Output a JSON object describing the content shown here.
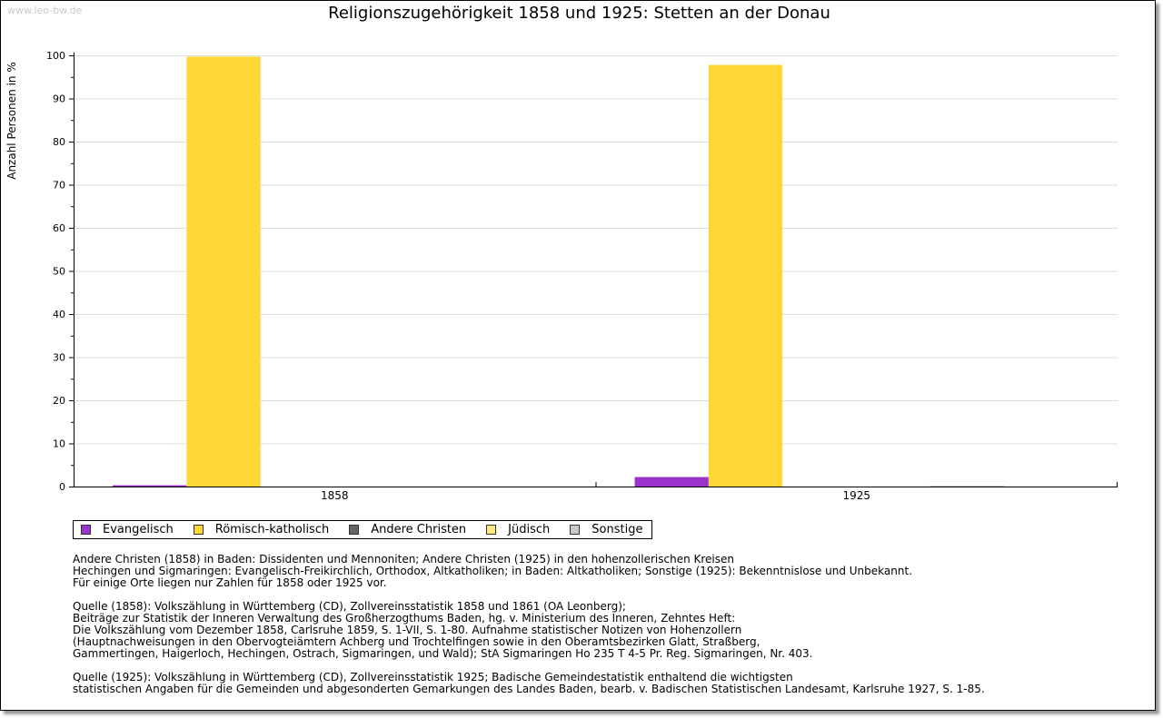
{
  "watermark": "www.leo-bw.de",
  "chart_data": {
    "type": "bar",
    "title": "Religionszugehörigkeit 1858 und 1925: Stetten an der Donau",
    "ylabel": "Anzahl Personen in %",
    "xlabel": "",
    "ylim": [
      0,
      100
    ],
    "yticks": [
      0,
      10,
      20,
      30,
      40,
      50,
      60,
      70,
      80,
      90,
      100
    ],
    "grid": true,
    "categories": [
      "1858",
      "1925"
    ],
    "series": [
      {
        "name": "Evangelisch",
        "color": "#9933cc",
        "values": [
          0.3,
          2.2
        ]
      },
      {
        "name": "Römisch-katholisch",
        "color": "#fdd835",
        "values": [
          99.7,
          97.8
        ]
      },
      {
        "name": "Andere Christen",
        "color": "#666666",
        "values": [
          0,
          0
        ]
      },
      {
        "name": "Jüdisch",
        "color": "#ffe680",
        "values": [
          0,
          0
        ]
      },
      {
        "name": "Sonstige",
        "color": "#c8c8c8",
        "values": [
          0,
          0.1
        ]
      }
    ],
    "legend": "bottom-left"
  },
  "notes": [
    "Andere Christen (1858) in Baden: Dissidenten und Mennoniten; Andere Christen (1925) in den hohenzollerischen Kreisen\nHechingen und Sigmaringen: Evangelisch-Freikirchlich, Orthodox, Altkatholiken; in Baden: Altkatholiken; Sonstige (1925): Bekenntnislose und Unbekannt.\nFür einige Orte liegen nur Zahlen für 1858 oder 1925 vor.",
    "Quelle (1858): Volkszählung in Württemberg (CD), Zollvereinsstatistik 1858 und 1861 (OA Leonberg);\nBeiträge zur Statistik der Inneren Verwaltung des Großherzogthums Baden, hg. v. Ministerium des Inneren, Zehntes Heft:\nDie Volkszählung vom Dezember 1858, Carlsruhe 1859, S. 1-VII, S. 1-80. Aufnahme statistischer Notizen von Hohenzollern\n(Hauptnachweisungen in den Obervogteiämtern Achberg und Trochtelfingen sowie in den Oberamtsbezirken Glatt, Straßberg,\nGammertingen, Haigerloch, Hechingen, Ostrach, Sigmaringen, und Wald); StA Sigmaringen Ho 235 T 4-5 Pr. Reg. Sigmaringen, Nr. 403.",
    "Quelle (1925): Volkszählung in Württemberg (CD), Zollvereinsstatistik 1925; Badische Gemeindestatistik enthaltend die wichtigsten\nstatistischen Angaben für die Gemeinden und abgesonderten Gemarkungen des Landes Baden, bearb. v. Badischen Statistischen Landesamt, Karlsruhe 1927, S. 1-85."
  ]
}
